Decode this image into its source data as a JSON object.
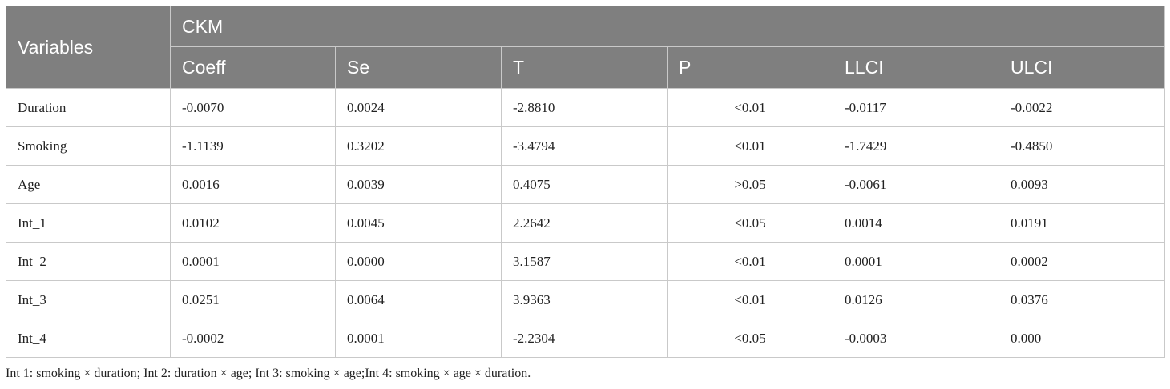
{
  "table": {
    "row_header": "Variables",
    "group_header": "CKM",
    "columns": [
      "Coeff",
      "Se",
      "T",
      "P",
      "LLCI",
      "ULCI"
    ],
    "rows": [
      {
        "label": "Duration",
        "values": [
          "-0.0070",
          "0.0024",
          "-2.8810",
          "<0.01",
          "-0.0117",
          "-0.0022"
        ]
      },
      {
        "label": "Smoking",
        "values": [
          "-1.1139",
          "0.3202",
          "-3.4794",
          "<0.01",
          "-1.7429",
          "-0.4850"
        ]
      },
      {
        "label": "Age",
        "values": [
          "0.0016",
          "0.0039",
          "0.4075",
          ">0.05",
          "-0.0061",
          "0.0093"
        ]
      },
      {
        "label": "Int_1",
        "values": [
          "0.0102",
          "0.0045",
          "2.2642",
          "<0.05",
          "0.0014",
          "0.0191"
        ]
      },
      {
        "label": "Int_2",
        "values": [
          "0.0001",
          "0.0000",
          "3.1587",
          "<0.01",
          "0.0001",
          "0.0002"
        ]
      },
      {
        "label": "Int_3",
        "values": [
          "0.0251",
          "0.0064",
          "3.9363",
          "<0.01",
          "0.0126",
          "0.0376"
        ]
      },
      {
        "label": "Int_4",
        "values": [
          "-0.0002",
          "0.0001",
          "-2.2304",
          "<0.05",
          "-0.0003",
          "0.000"
        ]
      }
    ]
  },
  "footnote": "Int 1: smoking × duration; Int 2: duration × age; Int 3: smoking × age;Int 4: smoking × age × duration."
}
